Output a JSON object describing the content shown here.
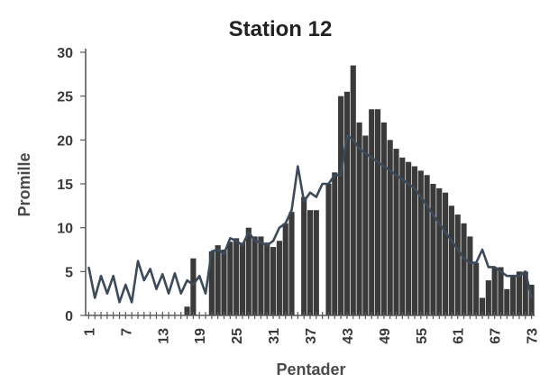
{
  "chart_data": {
    "type": "bar",
    "title": "Station 12",
    "xlabel": "Pentader",
    "ylabel": "Promille",
    "ylim": [
      0,
      30
    ],
    "yticks": [
      0,
      5,
      10,
      15,
      20,
      25,
      30
    ],
    "xlim": [
      1,
      73
    ],
    "xticks": [
      1,
      7,
      13,
      19,
      25,
      31,
      37,
      43,
      49,
      55,
      61,
      67,
      73
    ],
    "grid": false,
    "colors": {
      "bars": "#3a3a3a",
      "line": "#3c4a5a",
      "axis": "#5a5a5a"
    },
    "series": [
      {
        "kind": "bar",
        "x": [
          1,
          2,
          3,
          4,
          5,
          6,
          7,
          8,
          9,
          10,
          11,
          12,
          13,
          14,
          15,
          16,
          17,
          18,
          19,
          20,
          21,
          22,
          23,
          24,
          25,
          26,
          27,
          28,
          29,
          30,
          31,
          32,
          33,
          34,
          35,
          36,
          37,
          38,
          39,
          40,
          41,
          42,
          43,
          44,
          45,
          46,
          47,
          48,
          49,
          50,
          51,
          52,
          53,
          54,
          55,
          56,
          57,
          58,
          59,
          60,
          61,
          62,
          63,
          64,
          65,
          66,
          67,
          68,
          69,
          70,
          71,
          72,
          73
        ],
        "values": [
          0,
          0,
          0,
          0,
          0,
          0,
          0,
          0,
          0,
          0,
          0,
          0,
          0,
          0,
          0,
          0,
          1,
          6.5,
          0,
          0,
          7.3,
          8,
          7.5,
          8.4,
          8.8,
          8.3,
          10,
          9,
          9,
          8.3,
          7.8,
          8.5,
          10.5,
          11.8,
          0,
          13.5,
          12,
          12,
          0,
          15,
          16.3,
          25,
          25.5,
          28.5,
          22,
          20.5,
          23.5,
          23.5,
          22,
          20,
          19,
          18,
          17.5,
          17,
          16.5,
          16,
          15,
          14.5,
          14,
          12.5,
          11.5,
          10.5,
          9,
          6,
          2,
          4,
          5.5,
          5.5,
          3,
          4.5,
          5,
          5,
          3.5
        ]
      },
      {
        "kind": "line",
        "x": [
          1,
          2,
          3,
          4,
          5,
          6,
          7,
          8,
          9,
          10,
          11,
          12,
          13,
          14,
          15,
          16,
          17,
          18,
          19,
          20,
          21,
          22,
          23,
          24,
          25,
          26,
          27,
          28,
          29,
          30,
          31,
          32,
          33,
          34,
          35,
          36,
          37,
          38,
          39,
          40,
          41,
          42,
          43,
          44,
          45,
          46,
          47,
          48,
          49,
          50,
          51,
          52,
          53,
          54,
          55,
          56,
          57,
          58,
          59,
          60,
          61,
          62,
          63,
          64,
          65,
          66,
          67,
          68,
          69,
          70,
          71,
          72,
          73
        ],
        "values": [
          5.5,
          2,
          4.5,
          2.5,
          4.5,
          1.5,
          3.5,
          1.5,
          6.2,
          4,
          5.3,
          3,
          4.7,
          2.5,
          4.8,
          2.5,
          4,
          3.5,
          4.5,
          2.5,
          7.3,
          7.5,
          7,
          8.8,
          8.5,
          8,
          9.5,
          8.5,
          8.3,
          8,
          8.5,
          10,
          10.5,
          12,
          17,
          13,
          14,
          13.5,
          15,
          15,
          16,
          16,
          20.5,
          20,
          19,
          18.5,
          18,
          17.5,
          17,
          16.5,
          16,
          15.5,
          15,
          14.5,
          13.5,
          12.5,
          11.5,
          10.5,
          9.5,
          8.5,
          7.5,
          6.5,
          6,
          6,
          7.5,
          5.5,
          5.5,
          5,
          4.5,
          4.5,
          4.5,
          5,
          2
        ]
      }
    ]
  }
}
